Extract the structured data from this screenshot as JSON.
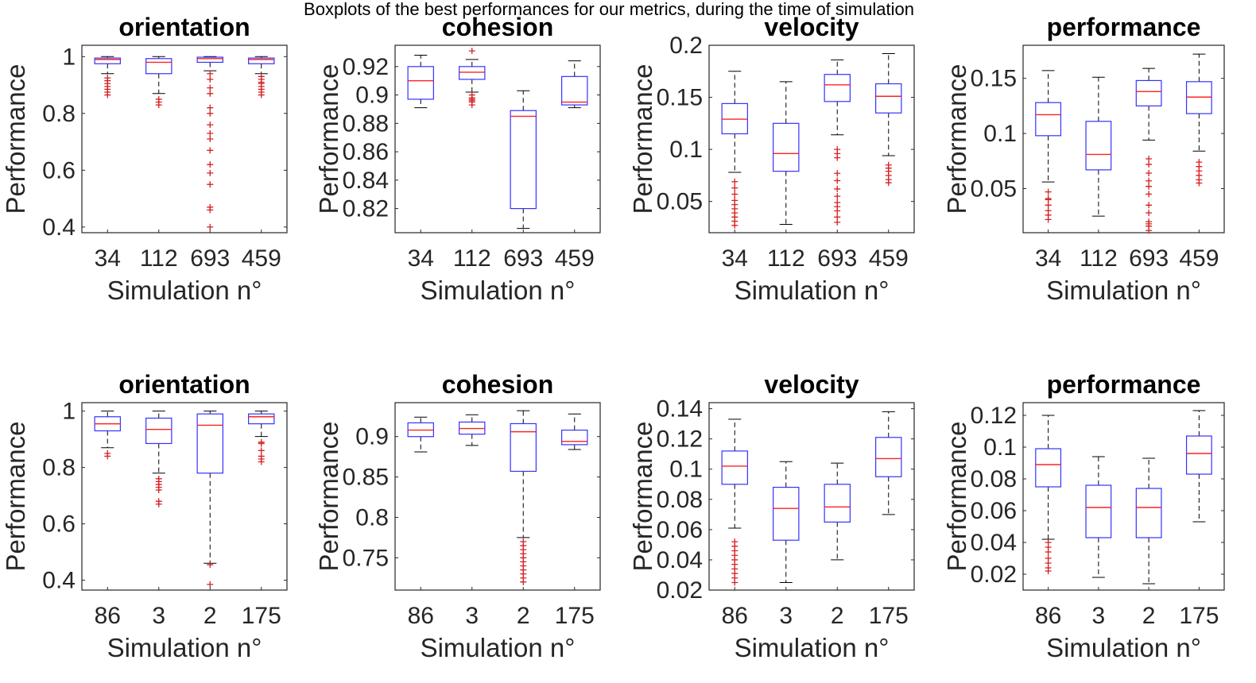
{
  "suptitle": "Boxplots of the best performances for our metrics, during the time of simulation",
  "colors": {
    "box": "#3333ff",
    "median": "#ff2222",
    "outlier": "#d42020",
    "whisker": "#000000"
  },
  "chart_data": [
    {
      "type": "boxplot",
      "title": "orientation",
      "xlabel": "Simulation n°",
      "ylabel": "Performance",
      "categories": [
        "34",
        "112",
        "693",
        "459"
      ],
      "ylim": [
        0.38,
        1.04
      ],
      "yticks": [
        0.4,
        0.6,
        0.8,
        1
      ],
      "ytick_labels": [
        "0.4",
        "0.6",
        "0.8",
        "1"
      ],
      "boxes": [
        {
          "whislo": 0.94,
          "q1": 0.975,
          "med": 0.99,
          "q3": 0.995,
          "whishi": 1.0,
          "outliers": [
            0.925,
            0.915,
            0.905,
            0.895,
            0.885,
            0.875,
            0.865
          ]
        },
        {
          "whislo": 0.87,
          "q1": 0.94,
          "med": 0.98,
          "q3": 0.993,
          "whishi": 1.0,
          "outliers": [
            0.85,
            0.84,
            0.83
          ]
        },
        {
          "whislo": 0.95,
          "q1": 0.98,
          "med": 0.993,
          "q3": 0.998,
          "whishi": 1.0,
          "outliers": [
            0.94,
            0.92,
            0.89,
            0.87,
            0.82,
            0.8,
            0.76,
            0.73,
            0.71,
            0.67,
            0.62,
            0.59,
            0.55,
            0.47,
            0.46,
            0.4
          ]
        },
        {
          "whislo": 0.94,
          "q1": 0.975,
          "med": 0.99,
          "q3": 0.995,
          "whishi": 1.0,
          "outliers": [
            0.93,
            0.92,
            0.91,
            0.905,
            0.895,
            0.885,
            0.875,
            0.865
          ]
        }
      ]
    },
    {
      "type": "boxplot",
      "title": "cohesion",
      "xlabel": "Simulation n°",
      "ylabel": "Performance",
      "categories": [
        "34",
        "112",
        "693",
        "459"
      ],
      "ylim": [
        0.803,
        0.935
      ],
      "yticks": [
        0.82,
        0.84,
        0.86,
        0.88,
        0.9,
        0.92
      ],
      "ytick_labels": [
        "0.82",
        "0.84",
        "0.86",
        "0.88",
        "0.9",
        "0.92"
      ],
      "boxes": [
        {
          "whislo": 0.891,
          "q1": 0.897,
          "med": 0.91,
          "q3": 0.92,
          "whishi": 0.928,
          "outliers": []
        },
        {
          "whislo": 0.902,
          "q1": 0.911,
          "med": 0.916,
          "q3": 0.92,
          "whishi": 0.925,
          "outliers": [
            0.931,
            0.9,
            0.898,
            0.897,
            0.896,
            0.895,
            0.893
          ]
        },
        {
          "whislo": 0.806,
          "q1": 0.82,
          "med": 0.885,
          "q3": 0.889,
          "whishi": 0.903,
          "outliers": []
        },
        {
          "whislo": 0.891,
          "q1": 0.893,
          "med": 0.895,
          "q3": 0.913,
          "whishi": 0.924,
          "outliers": []
        }
      ]
    },
    {
      "type": "boxplot",
      "title": "velocity",
      "xlabel": "Simulation n°",
      "ylabel": "Performance",
      "categories": [
        "34",
        "112",
        "693",
        "459"
      ],
      "ylim": [
        0.02,
        0.2
      ],
      "yticks": [
        0.05,
        0.1,
        0.15,
        0.2
      ],
      "ytick_labels": [
        "0.05",
        "0.1",
        "0.15",
        "0.2"
      ],
      "boxes": [
        {
          "whislo": 0.078,
          "q1": 0.115,
          "med": 0.129,
          "q3": 0.144,
          "whishi": 0.175,
          "outliers": [
            0.069,
            0.063,
            0.057,
            0.051,
            0.047,
            0.043,
            0.039,
            0.035,
            0.031,
            0.027
          ]
        },
        {
          "whislo": 0.028,
          "q1": 0.079,
          "med": 0.096,
          "q3": 0.125,
          "whishi": 0.165,
          "outliers": []
        },
        {
          "whislo": 0.114,
          "q1": 0.146,
          "med": 0.162,
          "q3": 0.172,
          "whishi": 0.186,
          "outliers": [
            0.1,
            0.096,
            0.092,
            0.077,
            0.07,
            0.062,
            0.055,
            0.049,
            0.045,
            0.041,
            0.035,
            0.03
          ]
        },
        {
          "whislo": 0.094,
          "q1": 0.135,
          "med": 0.151,
          "q3": 0.163,
          "whishi": 0.192,
          "outliers": [
            0.085,
            0.082,
            0.079,
            0.075,
            0.071,
            0.068
          ]
        }
      ]
    },
    {
      "type": "boxplot",
      "title": "performance",
      "xlabel": "Simulation n°",
      "ylabel": "Performance",
      "categories": [
        "34",
        "112",
        "693",
        "459"
      ],
      "ylim": [
        0.01,
        0.18
      ],
      "yticks": [
        0.05,
        0.1,
        0.15
      ],
      "ytick_labels": [
        "0.05",
        "0.1",
        "0.15"
      ],
      "boxes": [
        {
          "whislo": 0.056,
          "q1": 0.098,
          "med": 0.117,
          "q3": 0.128,
          "whishi": 0.157,
          "outliers": [
            0.047,
            0.041,
            0.04,
            0.035,
            0.03,
            0.026,
            0.022
          ]
        },
        {
          "whislo": 0.025,
          "q1": 0.067,
          "med": 0.081,
          "q3": 0.111,
          "whishi": 0.151,
          "outliers": []
        },
        {
          "whislo": 0.094,
          "q1": 0.125,
          "med": 0.138,
          "q3": 0.148,
          "whishi": 0.159,
          "outliers": [
            0.077,
            0.072,
            0.064,
            0.057,
            0.052,
            0.045,
            0.035,
            0.028,
            0.02,
            0.018,
            0.016,
            0.012
          ]
        },
        {
          "whislo": 0.084,
          "q1": 0.118,
          "med": 0.133,
          "q3": 0.147,
          "whishi": 0.172,
          "outliers": [
            0.074,
            0.07,
            0.066,
            0.062,
            0.058,
            0.055
          ]
        }
      ]
    },
    {
      "type": "boxplot",
      "title": "orientation",
      "xlabel": "Simulation n°",
      "ylabel": "Performance",
      "categories": [
        "86",
        "3",
        "2",
        "175"
      ],
      "ylim": [
        0.365,
        1.03
      ],
      "yticks": [
        0.4,
        0.6,
        0.8,
        1
      ],
      "ytick_labels": [
        "0.4",
        "0.6",
        "0.8",
        "1"
      ],
      "boxes": [
        {
          "whislo": 0.87,
          "q1": 0.93,
          "med": 0.955,
          "q3": 0.98,
          "whishi": 1.0,
          "outliers": [
            0.85,
            0.84
          ]
        },
        {
          "whislo": 0.78,
          "q1": 0.885,
          "med": 0.935,
          "q3": 0.975,
          "whishi": 1.0,
          "outliers": [
            0.76,
            0.75,
            0.74,
            0.73,
            0.72,
            0.68,
            0.67
          ]
        },
        {
          "whislo": 0.46,
          "q1": 0.78,
          "med": 0.95,
          "q3": 0.99,
          "whishi": 1.0,
          "outliers": [
            0.455,
            0.385
          ]
        },
        {
          "whislo": 0.91,
          "q1": 0.955,
          "med": 0.98,
          "q3": 0.99,
          "whishi": 1.0,
          "outliers": [
            0.89,
            0.885,
            0.86,
            0.84,
            0.83,
            0.82
          ]
        }
      ]
    },
    {
      "type": "boxplot",
      "title": "cohesion",
      "xlabel": "Simulation n°",
      "ylabel": "Performance",
      "categories": [
        "86",
        "3",
        "2",
        "175"
      ],
      "ylim": [
        0.71,
        0.942
      ],
      "yticks": [
        0.75,
        0.8,
        0.85,
        0.9
      ],
      "ytick_labels": [
        "0.75",
        "0.8",
        "0.85",
        "0.9"
      ],
      "boxes": [
        {
          "whislo": 0.881,
          "q1": 0.9,
          "med": 0.908,
          "q3": 0.917,
          "whishi": 0.924,
          "outliers": []
        },
        {
          "whislo": 0.889,
          "q1": 0.903,
          "med": 0.91,
          "q3": 0.918,
          "whishi": 0.927,
          "outliers": []
        },
        {
          "whislo": 0.775,
          "q1": 0.857,
          "med": 0.906,
          "q3": 0.916,
          "whishi": 0.932,
          "outliers": [
            0.77,
            0.765,
            0.76,
            0.755,
            0.75,
            0.745,
            0.74,
            0.735,
            0.73,
            0.725,
            0.72
          ]
        },
        {
          "whislo": 0.884,
          "q1": 0.89,
          "med": 0.894,
          "q3": 0.908,
          "whishi": 0.928,
          "outliers": []
        }
      ]
    },
    {
      "type": "boxplot",
      "title": "velocity",
      "xlabel": "Simulation n°",
      "ylabel": "Performance",
      "categories": [
        "86",
        "3",
        "2",
        "175"
      ],
      "ylim": [
        0.02,
        0.144
      ],
      "yticks": [
        0.02,
        0.04,
        0.06,
        0.08,
        0.1,
        0.12,
        0.14
      ],
      "ytick_labels": [
        "0.02",
        "0.04",
        "0.06",
        "0.08",
        "0.1",
        "0.12",
        "0.14"
      ],
      "boxes": [
        {
          "whislo": 0.061,
          "q1": 0.09,
          "med": 0.102,
          "q3": 0.112,
          "whishi": 0.133,
          "outliers": [
            0.052,
            0.049,
            0.046,
            0.043,
            0.04,
            0.037,
            0.034,
            0.031,
            0.028,
            0.025
          ]
        },
        {
          "whislo": 0.025,
          "q1": 0.053,
          "med": 0.074,
          "q3": 0.088,
          "whishi": 0.105,
          "outliers": []
        },
        {
          "whislo": 0.04,
          "q1": 0.065,
          "med": 0.075,
          "q3": 0.09,
          "whishi": 0.104,
          "outliers": []
        },
        {
          "whislo": 0.07,
          "q1": 0.095,
          "med": 0.107,
          "q3": 0.121,
          "whishi": 0.138,
          "outliers": []
        }
      ]
    },
    {
      "type": "boxplot",
      "title": "performance",
      "xlabel": "Simulation n°",
      "ylabel": "Performance",
      "categories": [
        "86",
        "3",
        "2",
        "175"
      ],
      "ylim": [
        0.01,
        0.128
      ],
      "yticks": [
        0.02,
        0.04,
        0.06,
        0.08,
        0.1,
        0.12
      ],
      "ytick_labels": [
        "0.02",
        "0.04",
        "0.06",
        "0.08",
        "0.1",
        "0.12"
      ],
      "boxes": [
        {
          "whislo": 0.042,
          "q1": 0.075,
          "med": 0.089,
          "q3": 0.099,
          "whishi": 0.12,
          "outliers": [
            0.04,
            0.037,
            0.034,
            0.03,
            0.027,
            0.024,
            0.022
          ]
        },
        {
          "whislo": 0.018,
          "q1": 0.043,
          "med": 0.062,
          "q3": 0.076,
          "whishi": 0.094,
          "outliers": []
        },
        {
          "whislo": 0.014,
          "q1": 0.043,
          "med": 0.062,
          "q3": 0.074,
          "whishi": 0.093,
          "outliers": []
        },
        {
          "whislo": 0.053,
          "q1": 0.083,
          "med": 0.096,
          "q3": 0.107,
          "whishi": 0.123,
          "outliers": []
        }
      ]
    }
  ]
}
